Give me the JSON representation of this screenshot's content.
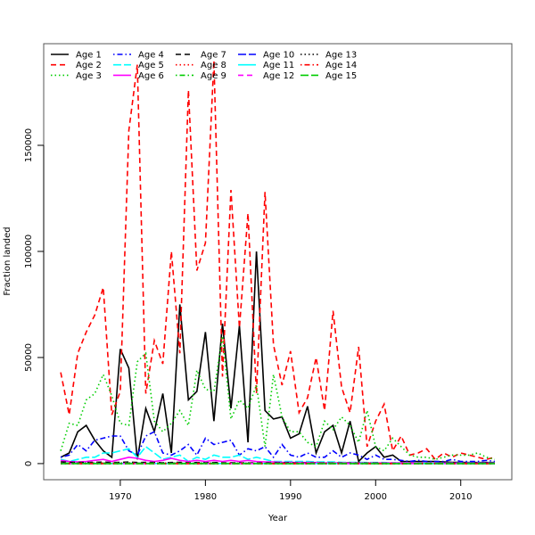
{
  "chart_data": {
    "type": "line",
    "title": "",
    "xlabel": "Year",
    "ylabel": "Fraction landed",
    "xlim": [
      1961,
      2016
    ],
    "ylim": [
      -7600,
      197900
    ],
    "xticks": [
      1970,
      1980,
      1990,
      2000,
      2010
    ],
    "yticks": [
      0,
      50000,
      100000,
      150000
    ],
    "grid": false,
    "legend_placement": "top-left",
    "colors": [
      "#000000",
      "#ff0000",
      "#00cd00",
      "#0000ff",
      "#00ffff",
      "#ff00ff"
    ],
    "x_start": 1963,
    "series": [
      {
        "name": "Age 1",
        "values": [
          3000,
          5000,
          15000,
          18000,
          11000,
          6000,
          3000,
          54000,
          45000,
          2000,
          26000,
          15000,
          33000,
          5000,
          75000,
          30000,
          34000,
          62000,
          20000,
          66000,
          26000,
          65000,
          10000,
          100000,
          25000,
          21000,
          22000,
          12000,
          14000,
          27000,
          5000,
          15000,
          18000,
          5000,
          20000,
          1000,
          5000,
          8000,
          3000,
          4000,
          1000,
          1000,
          1000,
          1000,
          1000,
          800,
          600,
          600,
          500,
          500,
          500,
          500
        ]
      },
      {
        "name": "Age 2",
        "values": [
          43000,
          23000,
          52000,
          62000,
          70000,
          83000,
          23000,
          34000,
          157000,
          188000,
          33000,
          58000,
          47000,
          100000,
          52000,
          176000,
          91000,
          104000,
          190000,
          41000,
          129000,
          64000,
          118000,
          33000,
          128000,
          56000,
          37000,
          53000,
          24000,
          31000,
          50000,
          25000,
          72000,
          36000,
          24000,
          55000,
          8000,
          20000,
          28000,
          6000,
          13000,
          4000,
          5000,
          7000,
          2000,
          5000,
          3000,
          5000,
          4000,
          3000,
          2000,
          3000
        ]
      },
      {
        "name": "Age 3",
        "values": [
          6000,
          19000,
          18000,
          30000,
          33000,
          42000,
          32000,
          19000,
          18000,
          48000,
          52000,
          20000,
          15000,
          19000,
          25000,
          18000,
          44000,
          35000,
          34000,
          60000,
          21000,
          30000,
          26000,
          37000,
          8000,
          42000,
          22000,
          15000,
          15000,
          10000,
          8000,
          20000,
          16000,
          22000,
          18000,
          10000,
          25000,
          8000,
          6000,
          12000,
          8000,
          4000,
          3000,
          3000,
          2000,
          3000,
          4000,
          4000,
          4000,
          5000,
          3000,
          2000
        ]
      },
      {
        "name": "Age 4",
        "values": [
          3000,
          4000,
          9000,
          6000,
          11000,
          12000,
          13000,
          13000,
          6000,
          4000,
          13000,
          15000,
          5000,
          4000,
          6000,
          9000,
          4000,
          12000,
          9000,
          10000,
          11000,
          4000,
          7000,
          6000,
          8000,
          3000,
          9000,
          4000,
          3000,
          5000,
          3000,
          3000,
          6000,
          3000,
          5000,
          4000,
          2000,
          4000,
          2000,
          2000,
          1500,
          1000,
          1500,
          1000,
          1000,
          1000,
          2000,
          1000,
          1000,
          1000,
          1500,
          1000
        ]
      },
      {
        "name": "Age 5",
        "values": [
          2000,
          1000,
          2000,
          3000,
          3000,
          5000,
          5000,
          6000,
          7000,
          3000,
          8000,
          5000,
          2000,
          3000,
          4000,
          1000,
          3000,
          2000,
          4000,
          3000,
          3000,
          4000,
          2000,
          3000,
          2000,
          1000,
          1000,
          1000,
          1000,
          1000,
          800,
          800,
          800,
          600,
          600,
          600,
          500,
          500,
          500,
          400,
          400,
          300,
          300,
          300,
          300,
          300,
          300,
          300,
          300,
          300,
          300,
          300
        ]
      },
      {
        "name": "Age 6",
        "values": [
          1500,
          1000,
          800,
          1000,
          1500,
          2000,
          1000,
          2000,
          3000,
          2500,
          1500,
          1000,
          1500,
          2500,
          1500,
          1000,
          1500,
          1000,
          1500,
          1000,
          1500,
          1000,
          1500,
          1000,
          800,
          800,
          600,
          600,
          500,
          500,
          500,
          400,
          400,
          400,
          400,
          300,
          300,
          300,
          300,
          300,
          300,
          300,
          200,
          200,
          200,
          200,
          200,
          200,
          200,
          200,
          200,
          200
        ]
      },
      {
        "name": "Age 7",
        "values": [
          800,
          600,
          600,
          500,
          600,
          700,
          500,
          600,
          700,
          500,
          600,
          500,
          400,
          500,
          600,
          400,
          500,
          400,
          500,
          400,
          400,
          400,
          300,
          300,
          300,
          300,
          300,
          300,
          200,
          200,
          200,
          200,
          200,
          200,
          200,
          200,
          200,
          200,
          100,
          100,
          100,
          100,
          100,
          100,
          100,
          100,
          100,
          100,
          100,
          100,
          100,
          100
        ]
      },
      {
        "name": "Age 8",
        "values": [
          400,
          300,
          300,
          300,
          400,
          400,
          300,
          300,
          400,
          300,
          300,
          300,
          200,
          300,
          300,
          200,
          300,
          200,
          300,
          200,
          200,
          200,
          200,
          200,
          200,
          200,
          200,
          100,
          100,
          100,
          100,
          100,
          100,
          100,
          100,
          100,
          100,
          100,
          100,
          100,
          100,
          100,
          100,
          100,
          100,
          100,
          100,
          100,
          100,
          100,
          100,
          100
        ]
      },
      {
        "name": "Age 9",
        "values": [
          200,
          200,
          200,
          200,
          200,
          200,
          200,
          200,
          200,
          200,
          200,
          200,
          100,
          200,
          200,
          100,
          200,
          100,
          200,
          100,
          100,
          100,
          100,
          100,
          100,
          100,
          100,
          100,
          100,
          100,
          100,
          100,
          100,
          100,
          100,
          100,
          100,
          100,
          50,
          50,
          50,
          50,
          50,
          50,
          50,
          50,
          50,
          50,
          50,
          50,
          50,
          50
        ]
      },
      {
        "name": "Age 10",
        "values": [
          100,
          100,
          100,
          100,
          100,
          100,
          100,
          100,
          100,
          100,
          100,
          100,
          100,
          100,
          100,
          100,
          100,
          100,
          100,
          100,
          100,
          100,
          100,
          100,
          100,
          100,
          100,
          50,
          50,
          50,
          50,
          50,
          50,
          50,
          50,
          50,
          50,
          50,
          50,
          50,
          50,
          50,
          50,
          50,
          50,
          50,
          50,
          50,
          50,
          50,
          50,
          50
        ]
      },
      {
        "name": "Age 11",
        "values": [
          50,
          50,
          50,
          50,
          50,
          50,
          50,
          50,
          50,
          50,
          50,
          50,
          50,
          50,
          50,
          50,
          50,
          50,
          50,
          50,
          50,
          50,
          50,
          50,
          50,
          50,
          50,
          50,
          50,
          50,
          50,
          50,
          50,
          50,
          50,
          50,
          50,
          50,
          50,
          50,
          50,
          50,
          50,
          50,
          50,
          50,
          50,
          50,
          50,
          50,
          50,
          50
        ]
      },
      {
        "name": "Age 12",
        "values": [
          30,
          30,
          30,
          30,
          30,
          30,
          30,
          30,
          30,
          30,
          30,
          30,
          30,
          30,
          30,
          30,
          30,
          30,
          30,
          30,
          30,
          30,
          30,
          30,
          30,
          30,
          30,
          30,
          30,
          30,
          30,
          30,
          30,
          30,
          30,
          30,
          30,
          30,
          30,
          30,
          30,
          30,
          30,
          30,
          30,
          30,
          30,
          30,
          30,
          30,
          30,
          30
        ]
      },
      {
        "name": "Age 13",
        "values": [
          20,
          20,
          20,
          20,
          20,
          20,
          20,
          20,
          20,
          20,
          20,
          20,
          20,
          20,
          20,
          20,
          20,
          20,
          20,
          20,
          20,
          20,
          20,
          20,
          20,
          20,
          20,
          20,
          20,
          20,
          20,
          20,
          20,
          20,
          20,
          20,
          20,
          20,
          20,
          20,
          20,
          20,
          20,
          20,
          20,
          20,
          20,
          20,
          20,
          20,
          20,
          20
        ]
      },
      {
        "name": "Age 14",
        "values": [
          10,
          10,
          10,
          10,
          10,
          10,
          10,
          10,
          10,
          10,
          10,
          10,
          10,
          10,
          10,
          10,
          10,
          10,
          10,
          10,
          10,
          10,
          10,
          10,
          10,
          10,
          10,
          10,
          10,
          10,
          10,
          10,
          10,
          10,
          10,
          10,
          10,
          10,
          10,
          10,
          10,
          10,
          10,
          10,
          10,
          10,
          10,
          10,
          10,
          10,
          10,
          10
        ]
      },
      {
        "name": "Age 15",
        "values": [
          5,
          5,
          5,
          5,
          5,
          5,
          5,
          5,
          5,
          5,
          5,
          5,
          5,
          5,
          5,
          5,
          5,
          5,
          5,
          5,
          5,
          5,
          5,
          5,
          5,
          5,
          5,
          5,
          5,
          5,
          5,
          5,
          5,
          5,
          5,
          5,
          5,
          5,
          5,
          5,
          5,
          5,
          5,
          5,
          5,
          5,
          5,
          5,
          5,
          5,
          5,
          5
        ]
      }
    ]
  }
}
